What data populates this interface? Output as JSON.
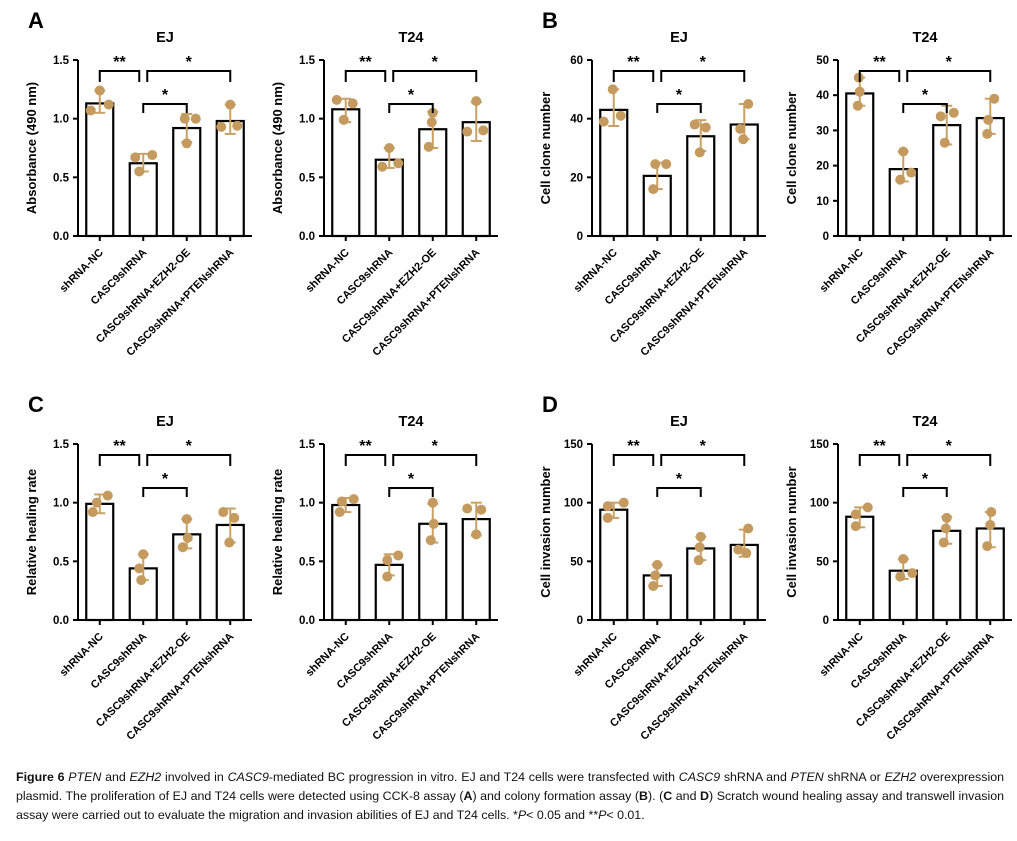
{
  "figure_title": "Figure 6",
  "panel_labels": [
    "A",
    "B",
    "C",
    "D"
  ],
  "style": {
    "background": "#ffffff",
    "bar_fill": "#ffffff",
    "bar_stroke": "#000000",
    "axis_color": "#000000",
    "dot_color": "#c49a5e",
    "error_bar_color": "#c9a164",
    "text_color": "#000000"
  },
  "chart_data": {
    "type": "bar",
    "categories": [
      "shRNA-NC",
      "CASC9shRNA",
      "CASC9shRNA+EZH2-OE",
      "CASC9shRNA+PTENshRNA"
    ],
    "significance": [
      {
        "between": [
          0,
          1
        ],
        "label": "**",
        "level": "high"
      },
      {
        "between": [
          1,
          3
        ],
        "label": "*",
        "level": "high"
      },
      {
        "between": [
          1,
          2
        ],
        "label": "*",
        "level": "low"
      }
    ],
    "charts": [
      {
        "panel": "A",
        "cell": "EJ",
        "title": "EJ",
        "xlabel": "",
        "ylabel": "Absorbance (490 nm)",
        "ylim": [
          0,
          1.5
        ],
        "yticks": [
          0,
          0.5,
          1,
          1.5
        ],
        "ydecimals": 1,
        "values": [
          1.13,
          0.62,
          0.92,
          0.98
        ],
        "errors": [
          [
            1.05,
            1.24
          ],
          [
            0.55,
            0.7
          ],
          [
            0.8,
            1.04
          ],
          [
            0.87,
            1.12
          ]
        ],
        "points": [
          [
            [
              -9,
              1.07
            ],
            [
              0,
              1.24
            ],
            [
              9,
              1.12
            ]
          ],
          [
            [
              -8,
              0.67
            ],
            [
              9,
              0.69
            ],
            [
              -4,
              0.55
            ]
          ],
          [
            [
              -2,
              1.0
            ],
            [
              9,
              1.0
            ],
            [
              0,
              0.79
            ]
          ],
          [
            [
              -9,
              0.93
            ],
            [
              0,
              1.12
            ],
            [
              7,
              0.94
            ]
          ]
        ]
      },
      {
        "panel": "A",
        "cell": "T24",
        "title": "T24",
        "xlabel": "",
        "ylabel": "Absorbance (490 nm)",
        "ylim": [
          0,
          1.5
        ],
        "yticks": [
          0,
          0.5,
          1,
          1.5
        ],
        "ydecimals": 1,
        "values": [
          1.08,
          0.65,
          0.91,
          0.97
        ],
        "errors": [
          [
            0.97,
            1.17
          ],
          [
            0.58,
            0.75
          ],
          [
            0.75,
            1.06
          ],
          [
            0.81,
            1.14
          ]
        ],
        "points": [
          [
            [
              -9,
              1.16
            ],
            [
              7,
              1.13
            ],
            [
              -2,
              0.99
            ]
          ],
          [
            [
              0,
              0.75
            ],
            [
              -7,
              0.59
            ],
            [
              9,
              0.62
            ]
          ],
          [
            [
              0,
              1.05
            ],
            [
              -1,
              0.97
            ],
            [
              -4,
              0.76
            ]
          ],
          [
            [
              0,
              1.15
            ],
            [
              -9,
              0.89
            ],
            [
              7,
              0.9
            ]
          ]
        ]
      },
      {
        "panel": "B",
        "cell": "EJ",
        "title": "EJ",
        "xlabel": "",
        "ylabel": "Cell clone number",
        "ylim": [
          0,
          60
        ],
        "yticks": [
          0,
          20,
          40,
          60
        ],
        "ydecimals": 0,
        "values": [
          43,
          20.5,
          34,
          38
        ],
        "errors": [
          [
            37.5,
            50
          ],
          [
            16,
            25
          ],
          [
            29,
            39.5
          ],
          [
            33,
            45
          ]
        ],
        "points": [
          [
            [
              -1,
              50
            ],
            [
              -10,
              39
            ],
            [
              7,
              41
            ]
          ],
          [
            [
              -2,
              24.5
            ],
            [
              9,
              24.5
            ],
            [
              -4,
              16
            ]
          ],
          [
            [
              -6,
              38
            ],
            [
              5,
              37
            ],
            [
              -1,
              28.5
            ]
          ],
          [
            [
              4,
              45
            ],
            [
              -4,
              36.5
            ],
            [
              -1,
              33
            ]
          ]
        ]
      },
      {
        "panel": "B",
        "cell": "T24",
        "title": "T24",
        "xlabel": "",
        "ylabel": "Cell clone number",
        "ylim": [
          0,
          50
        ],
        "yticks": [
          0,
          10,
          20,
          30,
          40,
          50
        ],
        "ydecimals": 0,
        "values": [
          40.5,
          19,
          31.5,
          33.5
        ],
        "errors": [
          [
            37,
            45
          ],
          [
            15.5,
            24
          ],
          [
            26,
            37
          ],
          [
            29,
            39
          ]
        ],
        "points": [
          [
            [
              -1,
              45
            ],
            [
              0,
              41
            ],
            [
              -2,
              37
            ]
          ],
          [
            [
              0,
              24
            ],
            [
              8,
              18
            ],
            [
              -3,
              16
            ]
          ],
          [
            [
              -6,
              34
            ],
            [
              7,
              35
            ],
            [
              -2,
              26.5
            ]
          ],
          [
            [
              4,
              39
            ],
            [
              -2,
              33
            ],
            [
              -3,
              29
            ]
          ]
        ]
      },
      {
        "panel": "C",
        "cell": "EJ",
        "title": "EJ",
        "xlabel": "",
        "ylabel": "Relative healing rate",
        "ylim": [
          0,
          1.5
        ],
        "yticks": [
          0,
          0.5,
          1,
          1.5
        ],
        "ydecimals": 1,
        "values": [
          0.99,
          0.44,
          0.73,
          0.81
        ],
        "errors": [
          [
            0.91,
            1.07
          ],
          [
            0.34,
            0.56
          ],
          [
            0.61,
            0.86
          ],
          [
            0.66,
            0.95
          ]
        ],
        "points": [
          [
            [
              -3,
              1.0
            ],
            [
              8,
              1.06
            ],
            [
              -7,
              0.92
            ]
          ],
          [
            [
              0,
              0.56
            ],
            [
              -4,
              0.44
            ],
            [
              -2,
              0.34
            ]
          ],
          [
            [
              0,
              0.86
            ],
            [
              1,
              0.7
            ],
            [
              -4,
              0.62
            ]
          ],
          [
            [
              -7,
              0.92
            ],
            [
              4,
              0.87
            ],
            [
              -1,
              0.66
            ]
          ]
        ]
      },
      {
        "panel": "C",
        "cell": "T24",
        "title": "T24",
        "xlabel": "",
        "ylabel": "Relative healing rate",
        "ylim": [
          0,
          1.5
        ],
        "yticks": [
          0,
          0.5,
          1,
          1.5
        ],
        "ydecimals": 1,
        "values": [
          0.98,
          0.47,
          0.82,
          0.86
        ],
        "errors": [
          [
            0.92,
            1.04
          ],
          [
            0.38,
            0.56
          ],
          [
            0.66,
            0.99
          ],
          [
            0.72,
            1.0
          ]
        ],
        "points": [
          [
            [
              -4,
              1.01
            ],
            [
              8,
              1.03
            ],
            [
              -6,
              0.92
            ]
          ],
          [
            [
              -2,
              0.51
            ],
            [
              9,
              0.55
            ],
            [
              -2,
              0.37
            ]
          ],
          [
            [
              0,
              1.0
            ],
            [
              1,
              0.82
            ],
            [
              -2,
              0.68
            ]
          ],
          [
            [
              -9,
              0.95
            ],
            [
              5,
              0.94
            ],
            [
              0,
              0.73
            ]
          ]
        ]
      },
      {
        "panel": "D",
        "cell": "EJ",
        "title": "EJ",
        "xlabel": "",
        "ylabel": "Cell invasion number",
        "ylim": [
          0,
          150
        ],
        "yticks": [
          0,
          50,
          100,
          150
        ],
        "ydecimals": 0,
        "values": [
          94,
          38,
          61,
          64
        ],
        "errors": [
          [
            87,
            100
          ],
          [
            29,
            47
          ],
          [
            51,
            71
          ],
          [
            54,
            77
          ]
        ],
        "points": [
          [
            [
              -6,
              97
            ],
            [
              10,
              100
            ],
            [
              -6,
              87
            ]
          ],
          [
            [
              0,
              47
            ],
            [
              -2,
              38
            ],
            [
              -4,
              29
            ]
          ],
          [
            [
              0,
              71
            ],
            [
              -1,
              62
            ],
            [
              -2,
              51
            ]
          ],
          [
            [
              4,
              78
            ],
            [
              -6,
              60
            ],
            [
              2,
              57
            ]
          ]
        ]
      },
      {
        "panel": "D",
        "cell": "T24",
        "title": "T24",
        "xlabel": "",
        "ylabel": "Cell invasion number",
        "ylim": [
          0,
          150
        ],
        "yticks": [
          0,
          50,
          100,
          150
        ],
        "ydecimals": 0,
        "values": [
          88,
          42,
          76,
          78
        ],
        "errors": [
          [
            79,
            96
          ],
          [
            35,
            52
          ],
          [
            65,
            88
          ],
          [
            62,
            92
          ]
        ],
        "points": [
          [
            [
              -4,
              90
            ],
            [
              8,
              96
            ],
            [
              -4,
              80
            ]
          ],
          [
            [
              0,
              52
            ],
            [
              -3,
              37
            ],
            [
              9,
              40
            ]
          ],
          [
            [
              0,
              87
            ],
            [
              -1,
              78
            ],
            [
              -3,
              66
            ]
          ],
          [
            [
              1,
              92
            ],
            [
              0,
              81
            ],
            [
              -3,
              63
            ]
          ]
        ]
      }
    ]
  },
  "caption": {
    "segments": [
      {
        "t": "Figure 6 ",
        "b": 1
      },
      {
        "t": "PTEN",
        "i": 1
      },
      {
        "t": " and "
      },
      {
        "t": "EZH2",
        "i": 1
      },
      {
        "t": " involved in "
      },
      {
        "t": "CASC9",
        "i": 1
      },
      {
        "t": "-mediated BC progression in vitro. EJ and T24 cells were transfected with "
      },
      {
        "t": "CASC9",
        "i": 1
      },
      {
        "t": " shRNA and "
      },
      {
        "t": "PTEN",
        "i": 1
      },
      {
        "t": " shRNA or "
      },
      {
        "t": "EZH2",
        "i": 1
      },
      {
        "t": " overexpression plasmid. The proliferation of EJ and T24 cells were detected using CCK-8 assay ("
      },
      {
        "t": "A",
        "b": 1
      },
      {
        "t": ") and colony formation assay ("
      },
      {
        "t": "B",
        "b": 1
      },
      {
        "t": "). ("
      },
      {
        "t": "C",
        "b": 1
      },
      {
        "t": " and "
      },
      {
        "t": "D",
        "b": 1
      },
      {
        "t": ") Scratch wound healing assay and transwell invasion assay were carried out to evaluate the migration and invasion abilities of EJ and T24 cells. *"
      },
      {
        "t": "P",
        "i": 1
      },
      {
        "t": "< 0.05 and **"
      },
      {
        "t": "P",
        "i": 1
      },
      {
        "t": "< 0.01."
      }
    ]
  }
}
